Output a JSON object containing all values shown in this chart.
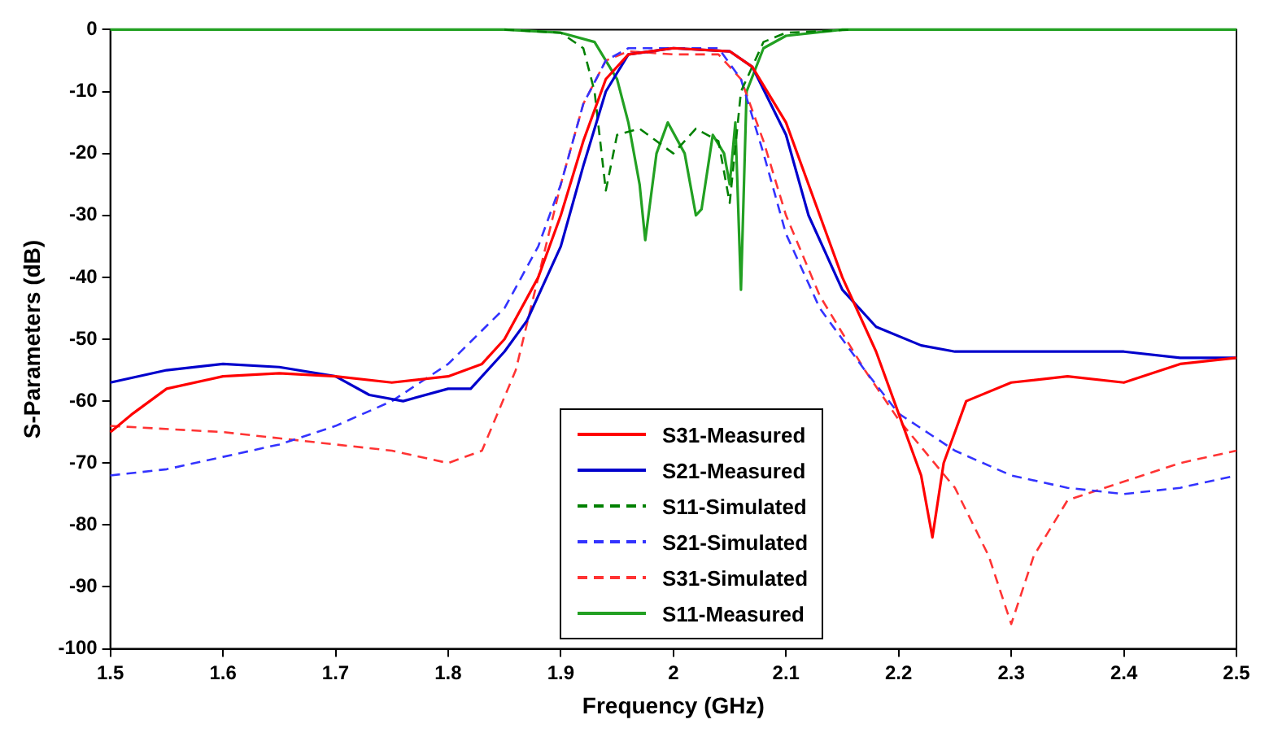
{
  "chart_data": {
    "type": "line",
    "xlabel": "Frequency (GHz)",
    "ylabel": "S-Parameters (dB)",
    "xlim": [
      1.5,
      2.5
    ],
    "ylim": [
      -100,
      0
    ],
    "xticks": [
      1.5,
      1.6,
      1.7,
      1.8,
      1.9,
      2,
      2.1,
      2.2,
      2.3,
      2.4,
      2.5
    ],
    "yticks": [
      -100,
      -90,
      -80,
      -70,
      -60,
      -50,
      -40,
      -30,
      -20,
      -10,
      0
    ],
    "grid": false,
    "legend": "bottom",
    "marker": "none",
    "series": [
      {
        "name": "S31-Measured",
        "color": "#ff0000",
        "line_style": "solid",
        "x": [
          1.5,
          1.52,
          1.55,
          1.6,
          1.65,
          1.7,
          1.75,
          1.8,
          1.83,
          1.85,
          1.88,
          1.9,
          1.92,
          1.94,
          1.96,
          2.0,
          2.05,
          2.07,
          2.1,
          2.12,
          2.15,
          2.18,
          2.2,
          2.22,
          2.23,
          2.24,
          2.26,
          2.3,
          2.35,
          2.4,
          2.45,
          2.5
        ],
        "values": [
          -65,
          -62,
          -58,
          -56,
          -55.5,
          -56,
          -57,
          -56,
          -54,
          -50,
          -40,
          -30,
          -18,
          -8,
          -4,
          -3,
          -3.5,
          -6,
          -15,
          -25,
          -40,
          -52,
          -62,
          -72,
          -82,
          -70,
          -60,
          -57,
          -56,
          -57,
          -54,
          -53
        ]
      },
      {
        "name": "S21-Measured",
        "color": "#0000cc",
        "line_style": "solid",
        "x": [
          1.5,
          1.55,
          1.6,
          1.65,
          1.7,
          1.73,
          1.76,
          1.8,
          1.82,
          1.85,
          1.87,
          1.9,
          1.92,
          1.94,
          1.96,
          2.0,
          2.05,
          2.07,
          2.1,
          2.12,
          2.15,
          2.18,
          2.22,
          2.25,
          2.3,
          2.35,
          2.4,
          2.45,
          2.5
        ],
        "values": [
          -57,
          -55,
          -54,
          -54.5,
          -56,
          -59,
          -60,
          -58,
          -58,
          -52,
          -47,
          -35,
          -22,
          -10,
          -4,
          -3,
          -3.5,
          -6,
          -17,
          -30,
          -42,
          -48,
          -51,
          -52,
          -52,
          -52,
          -52,
          -53,
          -53
        ]
      },
      {
        "name": "S11-Simulated",
        "color": "#008000",
        "line_style": "dashed",
        "x": [
          1.85,
          1.9,
          1.92,
          1.93,
          1.94,
          1.95,
          1.97,
          2.0,
          2.02,
          2.04,
          2.05,
          2.06,
          2.08,
          2.1,
          2.16
        ],
        "values": [
          0,
          -0.5,
          -3,
          -10,
          -26,
          -17,
          -16,
          -20,
          -16,
          -18,
          -28,
          -10,
          -2,
          -0.5,
          0
        ]
      },
      {
        "name": "S21-Simulated",
        "color": "#3333ff",
        "line_style": "dashed",
        "x": [
          1.5,
          1.55,
          1.6,
          1.65,
          1.7,
          1.75,
          1.8,
          1.85,
          1.88,
          1.9,
          1.92,
          1.94,
          1.96,
          2.0,
          2.04,
          2.06,
          2.08,
          2.1,
          2.13,
          2.17,
          2.2,
          2.25,
          2.3,
          2.35,
          2.4,
          2.45,
          2.5
        ],
        "values": [
          -72,
          -71,
          -69,
          -67,
          -64,
          -60,
          -54,
          -45,
          -35,
          -25,
          -12,
          -5,
          -3,
          -3,
          -3,
          -8,
          -20,
          -33,
          -45,
          -55,
          -62,
          -68,
          -72,
          -74,
          -75,
          -74,
          -72
        ]
      },
      {
        "name": "S31-Simulated",
        "color": "#ff3333",
        "line_style": "dashed",
        "x": [
          1.5,
          1.6,
          1.65,
          1.7,
          1.75,
          1.8,
          1.83,
          1.86,
          1.88,
          1.9,
          1.92,
          1.94,
          1.96,
          2.0,
          2.04,
          2.06,
          2.08,
          2.1,
          2.13,
          2.17,
          2.2,
          2.25,
          2.28,
          2.3,
          2.32,
          2.35,
          2.4,
          2.45,
          2.5
        ],
        "values": [
          -64,
          -65,
          -66,
          -67,
          -68,
          -70,
          -68,
          -55,
          -40,
          -25,
          -12,
          -5,
          -3.5,
          -4,
          -4,
          -8,
          -18,
          -30,
          -43,
          -55,
          -63,
          -74,
          -85,
          -96,
          -85,
          -76,
          -73,
          -70,
          -68
        ]
      },
      {
        "name": "S11-Measured",
        "color": "#22a022",
        "line_style": "solid",
        "x": [
          1.5,
          1.85,
          1.9,
          1.93,
          1.95,
          1.96,
          1.97,
          1.975,
          1.985,
          1.995,
          2.01,
          2.02,
          2.025,
          2.035,
          2.045,
          2.05,
          2.055,
          2.06,
          2.065,
          2.08,
          2.1,
          2.15,
          2.5
        ],
        "values": [
          0,
          0,
          -0.5,
          -2,
          -8,
          -15,
          -25,
          -34,
          -20,
          -15,
          -20,
          -30,
          -29,
          -17,
          -20,
          -25,
          -15,
          -42,
          -10,
          -3,
          -1,
          0,
          0
        ]
      }
    ]
  }
}
